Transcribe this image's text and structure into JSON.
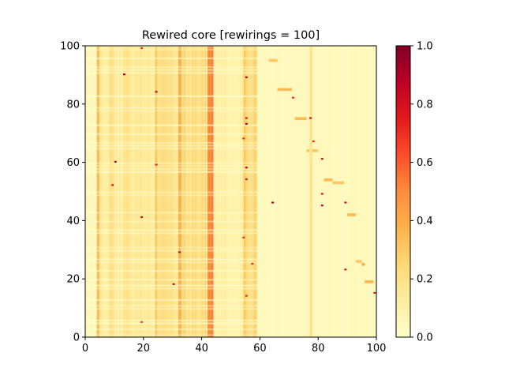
{
  "chart_data": {
    "type": "heatmap",
    "title": "Rewired core [rewirings = 100]",
    "xlabel": "",
    "ylabel": "",
    "xlim": [
      0,
      100
    ],
    "ylim": [
      0,
      100
    ],
    "x_ticks": [
      0,
      20,
      40,
      60,
      80,
      100
    ],
    "y_ticks": [
      0,
      20,
      40,
      60,
      80,
      100
    ],
    "grid": false,
    "colormap": "YlOrRd",
    "colorbar": {
      "range": [
        0.0,
        1.0
      ],
      "ticks": [
        "0.0",
        "0.2",
        "0.4",
        "0.6",
        "0.8",
        "1.0"
      ]
    },
    "column_profile": {
      "description": "approximate mean intensity per column band (x range in data units)",
      "bands": [
        {
          "x": [
            0,
            4
          ],
          "value": 0.05
        },
        {
          "x": [
            4,
            5
          ],
          "value": 0.35
        },
        {
          "x": [
            5,
            8
          ],
          "value": 0.12
        },
        {
          "x": [
            8,
            10
          ],
          "value": 0.2
        },
        {
          "x": [
            10,
            13
          ],
          "value": 0.12
        },
        {
          "x": [
            13,
            16
          ],
          "value": 0.18
        },
        {
          "x": [
            16,
            24
          ],
          "value": 0.14
        },
        {
          "x": [
            24,
            25
          ],
          "value": 0.3
        },
        {
          "x": [
            25,
            32
          ],
          "value": 0.18
        },
        {
          "x": [
            32,
            33
          ],
          "value": 0.35
        },
        {
          "x": [
            33,
            42
          ],
          "value": 0.2
        },
        {
          "x": [
            42,
            44
          ],
          "value": 0.45
        },
        {
          "x": [
            44,
            54
          ],
          "value": 0.1
        },
        {
          "x": [
            54,
            56
          ],
          "value": 0.25
        },
        {
          "x": [
            56,
            59
          ],
          "value": 0.22
        },
        {
          "x": [
            59,
            77
          ],
          "value": 0.04
        },
        {
          "x": [
            77,
            78
          ],
          "value": 0.15
        },
        {
          "x": [
            78,
            100
          ],
          "value": 0.04
        }
      ]
    },
    "hot_cells": [
      {
        "x": 19,
        "y": 99,
        "value": 0.7
      },
      {
        "x": 13,
        "y": 90,
        "value": 0.9
      },
      {
        "x": 55,
        "y": 89,
        "value": 0.85
      },
      {
        "x": 24,
        "y": 84,
        "value": 0.85
      },
      {
        "x": 71,
        "y": 82,
        "value": 0.7
      },
      {
        "x": 55,
        "y": 75,
        "value": 0.75
      },
      {
        "x": 77,
        "y": 75,
        "value": 0.8
      },
      {
        "x": 55,
        "y": 73,
        "value": 0.85
      },
      {
        "x": 54,
        "y": 68,
        "value": 0.7
      },
      {
        "x": 78,
        "y": 67,
        "value": 0.7
      },
      {
        "x": 81,
        "y": 61,
        "value": 0.8
      },
      {
        "x": 10,
        "y": 60,
        "value": 0.85
      },
      {
        "x": 24,
        "y": 59,
        "value": 0.75
      },
      {
        "x": 55,
        "y": 58,
        "value": 0.85
      },
      {
        "x": 55,
        "y": 54,
        "value": 0.75
      },
      {
        "x": 9,
        "y": 52,
        "value": 0.8
      },
      {
        "x": 81,
        "y": 49,
        "value": 0.75
      },
      {
        "x": 64,
        "y": 46,
        "value": 0.9
      },
      {
        "x": 89,
        "y": 46,
        "value": 0.8
      },
      {
        "x": 81,
        "y": 45,
        "value": 0.85
      },
      {
        "x": 19,
        "y": 41,
        "value": 0.8
      },
      {
        "x": 54,
        "y": 34,
        "value": 0.7
      },
      {
        "x": 32,
        "y": 29,
        "value": 0.8
      },
      {
        "x": 57,
        "y": 25,
        "value": 0.7
      },
      {
        "x": 89,
        "y": 23,
        "value": 0.8
      },
      {
        "x": 30,
        "y": 18,
        "value": 0.8
      },
      {
        "x": 55,
        "y": 14,
        "value": 0.7
      },
      {
        "x": 99,
        "y": 15,
        "value": 0.75
      },
      {
        "x": 19,
        "y": 5,
        "value": 0.65
      }
    ],
    "warm_segments": [
      {
        "x": [
          63,
          66
        ],
        "y": 95,
        "value": 0.3
      },
      {
        "x": [
          66,
          71
        ],
        "y": 85,
        "value": 0.35
      },
      {
        "x": [
          72,
          76
        ],
        "y": 75,
        "value": 0.35
      },
      {
        "x": [
          76,
          77
        ],
        "y": 64,
        "value": 0.3
      },
      {
        "x": [
          78,
          80
        ],
        "y": 64,
        "value": 0.3
      },
      {
        "x": [
          82,
          85
        ],
        "y": 54,
        "value": 0.35
      },
      {
        "x": [
          85,
          89
        ],
        "y": 53,
        "value": 0.3
      },
      {
        "x": [
          90,
          93
        ],
        "y": 42,
        "value": 0.35
      },
      {
        "x": [
          93,
          95
        ],
        "y": 26,
        "value": 0.3
      },
      {
        "x": [
          95,
          96
        ],
        "y": 25,
        "value": 0.4
      },
      {
        "x": [
          96,
          99
        ],
        "y": 19,
        "value": 0.35
      }
    ]
  }
}
